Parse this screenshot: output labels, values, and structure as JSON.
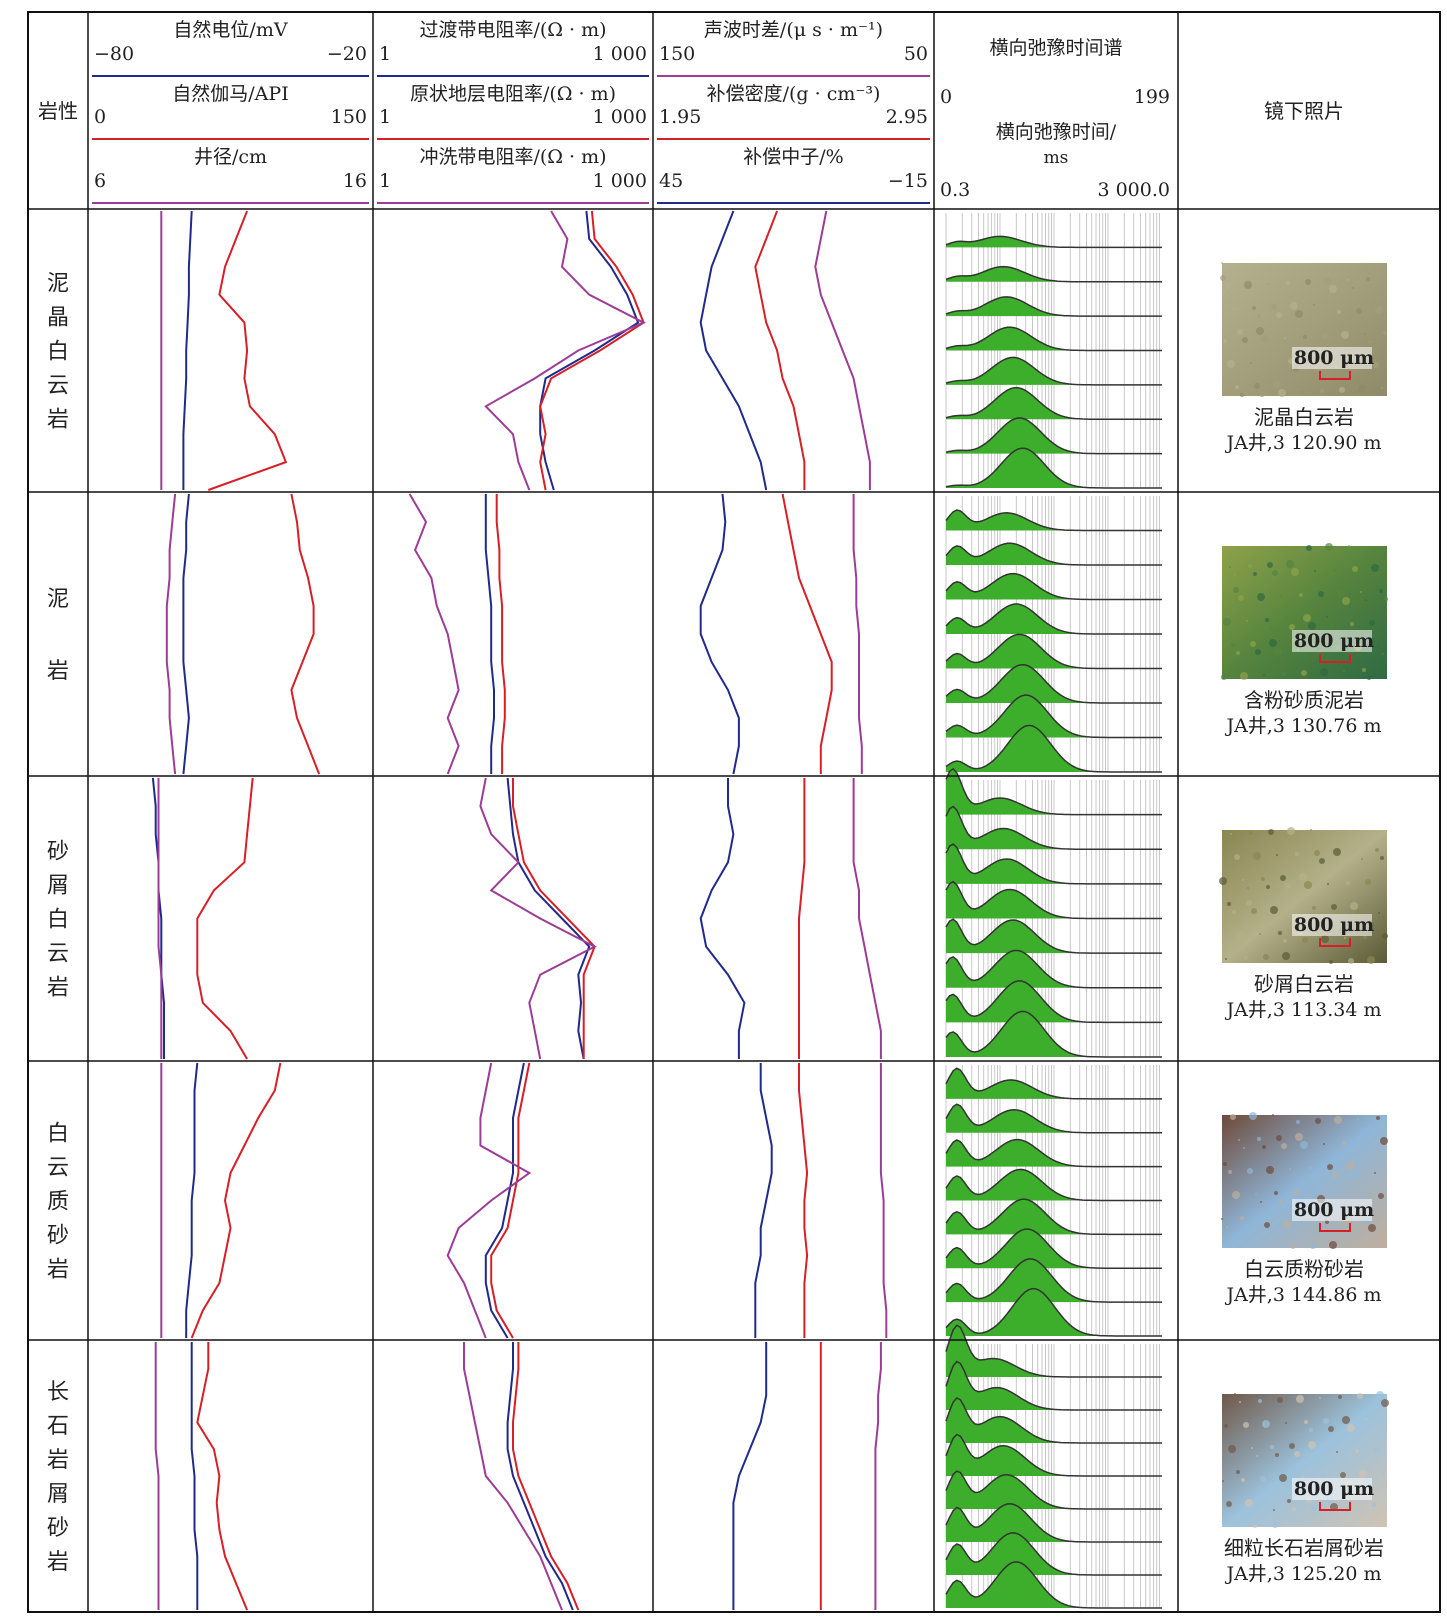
{
  "header": {
    "lith_col": "岩性",
    "photo_col": "镜下照片",
    "spectrum_title": "横向弛豫时间谱"
  },
  "tracks": [
    {
      "curves": [
        {
          "name": "自然电位/mV",
          "min_label": "−80",
          "max_label": "−20",
          "color": "#1f2a8a"
        },
        {
          "name": "自然伽马/API",
          "min_label": "0",
          "max_label": "150",
          "color": "#d61f26"
        },
        {
          "name": "井径/cm",
          "min_label": "6",
          "max_label": "16",
          "color": "#9c3c96"
        }
      ]
    },
    {
      "curves": [
        {
          "name": "过渡带电阻率/(Ω · m)",
          "min_label": "1",
          "max_label": "1 000",
          "color": "#1f2a8a"
        },
        {
          "name": "原状地层电阻率/(Ω · m)",
          "min_label": "1",
          "max_label": "1 000",
          "color": "#d61f26"
        },
        {
          "name": "冲洗带电阻率/(Ω · m)",
          "min_label": "1",
          "max_label": "1 000",
          "color": "#9c3c96"
        }
      ]
    },
    {
      "curves": [
        {
          "name": "声波时差/(μ s · m⁻¹)",
          "min_label": "150",
          "max_label": "50",
          "color": "#9c3c96"
        },
        {
          "name": "补偿密度/(g · cm⁻³)",
          "min_label": "1.95",
          "max_label": "2.95",
          "color": "#d61f26"
        },
        {
          "name": "补偿中子/%",
          "min_label": "45",
          "max_label": "−15",
          "color": "#1f2a8a"
        }
      ]
    },
    {
      "curves": [
        {
          "name": "",
          "min_label": "0",
          "max_label": "199",
          "color": "#222222"
        },
        {
          "name": "横向弛豫时间/ ms",
          "min_label": "0.3",
          "max_label": "3 000.0",
          "color": "#222222"
        }
      ]
    }
  ],
  "spectrum_fill_color": "#3dae2b",
  "rows": [
    {
      "lithology": [
        "泥",
        "晶",
        "白",
        "云",
        "岩"
      ],
      "photo_caption": "泥晶白云岩",
      "photo_location": "JA井,3 120.90 m",
      "scale_label": "800 μm",
      "photo_colors": [
        "#b5b08e",
        "#a39e7b",
        "#8f8a68"
      ]
    },
    {
      "lithology": [
        "泥",
        "",
        "岩"
      ],
      "photo_caption": "含粉砂质泥岩",
      "photo_location": "JA井,3 130.76 m",
      "scale_label": "800 μm",
      "photo_colors": [
        "#8ea24a",
        "#56843e",
        "#2f6a43"
      ]
    },
    {
      "lithology": [
        "砂",
        "屑",
        "白",
        "云",
        "岩"
      ],
      "photo_caption": "砂屑白云岩",
      "photo_location": "JA井,3 113.34 m",
      "scale_label": "800 μm",
      "photo_colors": [
        "#8a8652",
        "#b4b089",
        "#5a5a36"
      ]
    },
    {
      "lithology": [
        "白",
        "云",
        "质",
        "砂",
        "岩"
      ],
      "photo_caption": "白云质粉砂岩",
      "photo_location": "JA井,3 144.86 m",
      "scale_label": "800 μm",
      "photo_colors": [
        "#6e4a3a",
        "#8fb6d8",
        "#bfae9c"
      ]
    },
    {
      "lithology": [
        "长",
        "石",
        "岩",
        "屑",
        "砂",
        "岩"
      ],
      "photo_caption": "细粒长石岩屑砂岩",
      "photo_location": "JA井,3 125.20 m",
      "scale_label": "800 μm",
      "photo_colors": [
        "#6f5848",
        "#9cc2dc",
        "#cfc3b3"
      ]
    }
  ],
  "chart_data": {
    "type": "line",
    "note_units": "curve values are given as fraction of track width from the track's left scale label (0) to its right scale label (1); depth samples are evenly spaced top to bottom within each lithology interval",
    "intervals": [
      {
        "lithology": "泥晶白云岩",
        "SP": [
          0.36,
          0.355,
          0.35,
          0.35,
          0.345,
          0.34,
          0.34,
          0.335,
          0.33,
          0.33,
          0.33
        ],
        "GR": [
          0.56,
          0.52,
          0.48,
          0.46,
          0.55,
          0.56,
          0.55,
          0.57,
          0.66,
          0.7,
          0.42
        ],
        "CAL": [
          0.25,
          0.25,
          0.25,
          0.25,
          0.25,
          0.25,
          0.25,
          0.25,
          0.25,
          0.25,
          0.25
        ],
        "RT_transition": [
          0.77,
          0.78,
          0.86,
          0.92,
          0.96,
          0.8,
          0.62,
          0.6,
          0.6,
          0.62,
          0.65
        ],
        "RT_deep": [
          0.79,
          0.8,
          0.88,
          0.94,
          0.98,
          0.82,
          0.64,
          0.6,
          0.62,
          0.6,
          0.62
        ],
        "RT_flushed": [
          0.64,
          0.7,
          0.68,
          0.78,
          0.98,
          0.74,
          0.58,
          0.4,
          0.5,
          0.52,
          0.56
        ],
        "AC": [
          0.62,
          0.6,
          0.58,
          0.6,
          0.64,
          0.68,
          0.72,
          0.74,
          0.76,
          0.78,
          0.78
        ],
        "DEN": [
          0.44,
          0.4,
          0.36,
          0.38,
          0.4,
          0.44,
          0.46,
          0.5,
          0.52,
          0.54,
          0.54
        ],
        "CNL": [
          0.28,
          0.24,
          0.2,
          0.18,
          0.16,
          0.18,
          0.24,
          0.3,
          0.34,
          0.38,
          0.4
        ]
      },
      {
        "lithology": "泥岩",
        "SP": [
          0.35,
          0.34,
          0.34,
          0.33,
          0.33,
          0.33,
          0.33,
          0.34,
          0.35,
          0.34,
          0.33
        ],
        "GR": [
          0.72,
          0.74,
          0.75,
          0.78,
          0.8,
          0.8,
          0.76,
          0.72,
          0.74,
          0.78,
          0.82
        ],
        "CAL": [
          0.3,
          0.29,
          0.28,
          0.28,
          0.27,
          0.27,
          0.27,
          0.28,
          0.28,
          0.29,
          0.3
        ],
        "RT_transition": [
          0.4,
          0.4,
          0.4,
          0.41,
          0.42,
          0.42,
          0.42,
          0.43,
          0.43,
          0.42,
          0.42
        ],
        "RT_deep": [
          0.44,
          0.44,
          0.45,
          0.45,
          0.46,
          0.46,
          0.46,
          0.47,
          0.47,
          0.46,
          0.46
        ],
        "RT_flushed": [
          0.12,
          0.18,
          0.14,
          0.2,
          0.22,
          0.26,
          0.28,
          0.3,
          0.26,
          0.3,
          0.26
        ],
        "AC": [
          0.72,
          0.72,
          0.72,
          0.73,
          0.73,
          0.74,
          0.74,
          0.74,
          0.74,
          0.75,
          0.75
        ],
        "DEN": [
          0.46,
          0.48,
          0.5,
          0.52,
          0.56,
          0.6,
          0.64,
          0.64,
          0.62,
          0.6,
          0.6
        ],
        "CNL": [
          0.24,
          0.25,
          0.24,
          0.2,
          0.16,
          0.16,
          0.2,
          0.26,
          0.3,
          0.3,
          0.28
        ]
      },
      {
        "lithology": "砂屑白云岩",
        "SP": [
          0.22,
          0.23,
          0.23,
          0.24,
          0.24,
          0.25,
          0.25,
          0.25,
          0.26,
          0.26,
          0.26
        ],
        "GR": [
          0.58,
          0.57,
          0.56,
          0.55,
          0.44,
          0.38,
          0.38,
          0.38,
          0.4,
          0.5,
          0.56
        ],
        "CAL": [
          0.24,
          0.24,
          0.24,
          0.24,
          0.24,
          0.24,
          0.24,
          0.25,
          0.25,
          0.25,
          0.25
        ],
        "RT_transition": [
          0.48,
          0.49,
          0.5,
          0.52,
          0.58,
          0.68,
          0.78,
          0.74,
          0.75,
          0.74,
          0.76
        ],
        "RT_deep": [
          0.5,
          0.5,
          0.52,
          0.54,
          0.6,
          0.7,
          0.8,
          0.76,
          0.76,
          0.76,
          0.76
        ],
        "RT_flushed": [
          0.4,
          0.38,
          0.42,
          0.52,
          0.42,
          0.6,
          0.8,
          0.6,
          0.56,
          0.58,
          0.6
        ],
        "AC": [
          0.72,
          0.72,
          0.72,
          0.72,
          0.74,
          0.74,
          0.76,
          0.78,
          0.8,
          0.82,
          0.82
        ],
        "DEN": [
          0.54,
          0.54,
          0.54,
          0.54,
          0.53,
          0.52,
          0.52,
          0.52,
          0.52,
          0.52,
          0.52
        ],
        "CNL": [
          0.26,
          0.26,
          0.28,
          0.26,
          0.2,
          0.16,
          0.18,
          0.26,
          0.32,
          0.3,
          0.3
        ]
      },
      {
        "lithology": "白云质砂岩",
        "SP": [
          0.38,
          0.37,
          0.37,
          0.37,
          0.37,
          0.36,
          0.36,
          0.36,
          0.35,
          0.34,
          0.34
        ],
        "GR": [
          0.68,
          0.66,
          0.6,
          0.55,
          0.5,
          0.48,
          0.5,
          0.48,
          0.46,
          0.4,
          0.36
        ],
        "CAL": [
          0.25,
          0.25,
          0.25,
          0.25,
          0.25,
          0.25,
          0.25,
          0.25,
          0.25,
          0.25,
          0.25
        ],
        "RT_transition": [
          0.54,
          0.52,
          0.5,
          0.5,
          0.5,
          0.48,
          0.46,
          0.4,
          0.4,
          0.42,
          0.48
        ],
        "RT_deep": [
          0.56,
          0.54,
          0.52,
          0.52,
          0.52,
          0.5,
          0.48,
          0.42,
          0.42,
          0.44,
          0.5
        ],
        "RT_flushed": [
          0.42,
          0.4,
          0.38,
          0.38,
          0.56,
          0.42,
          0.3,
          0.26,
          0.32,
          0.36,
          0.4
        ],
        "AC": [
          0.82,
          0.82,
          0.82,
          0.82,
          0.82,
          0.83,
          0.83,
          0.83,
          0.83,
          0.84,
          0.84
        ],
        "DEN": [
          0.52,
          0.52,
          0.53,
          0.54,
          0.55,
          0.54,
          0.54,
          0.55,
          0.54,
          0.54,
          0.54
        ],
        "CNL": [
          0.38,
          0.38,
          0.4,
          0.42,
          0.42,
          0.4,
          0.38,
          0.38,
          0.36,
          0.36,
          0.36
        ]
      },
      {
        "lithology": "长石岩屑砂岩",
        "SP": [
          0.36,
          0.36,
          0.36,
          0.36,
          0.36,
          0.37,
          0.37,
          0.37,
          0.38,
          0.38,
          0.38
        ],
        "GR": [
          0.42,
          0.42,
          0.4,
          0.38,
          0.44,
          0.46,
          0.45,
          0.46,
          0.48,
          0.52,
          0.56
        ],
        "CAL": [
          0.23,
          0.23,
          0.23,
          0.23,
          0.23,
          0.24,
          0.24,
          0.24,
          0.24,
          0.24,
          0.24
        ],
        "RT_transition": [
          0.5,
          0.5,
          0.49,
          0.48,
          0.48,
          0.5,
          0.54,
          0.58,
          0.62,
          0.68,
          0.72
        ],
        "RT_deep": [
          0.52,
          0.52,
          0.51,
          0.5,
          0.5,
          0.52,
          0.56,
          0.6,
          0.64,
          0.7,
          0.74
        ],
        "RT_flushed": [
          0.32,
          0.32,
          0.34,
          0.36,
          0.38,
          0.4,
          0.48,
          0.54,
          0.6,
          0.64,
          0.68
        ],
        "AC": [
          0.82,
          0.82,
          0.81,
          0.81,
          0.8,
          0.8,
          0.8,
          0.8,
          0.8,
          0.8,
          0.8
        ],
        "DEN": [
          0.6,
          0.6,
          0.6,
          0.6,
          0.6,
          0.6,
          0.6,
          0.6,
          0.6,
          0.6,
          0.6
        ],
        "CNL": [
          0.4,
          0.4,
          0.4,
          0.38,
          0.34,
          0.3,
          0.28,
          0.28,
          0.28,
          0.28,
          0.28
        ]
      }
    ],
    "t2_spectrum_peaks": [
      [
        [
          0.05,
          0.08
        ],
        [
          0.25,
          0.2
        ]
      ],
      [
        [
          0.05,
          0.35
        ],
        [
          0.28,
          0.32
        ]
      ],
      [
        [
          0.03,
          0.8
        ],
        [
          0.25,
          0.3
        ]
      ],
      [
        [
          0.05,
          0.55
        ],
        [
          0.3,
          0.35
        ]
      ],
      [
        [
          0.05,
          0.9
        ],
        [
          0.22,
          0.35
        ]
      ]
    ]
  }
}
